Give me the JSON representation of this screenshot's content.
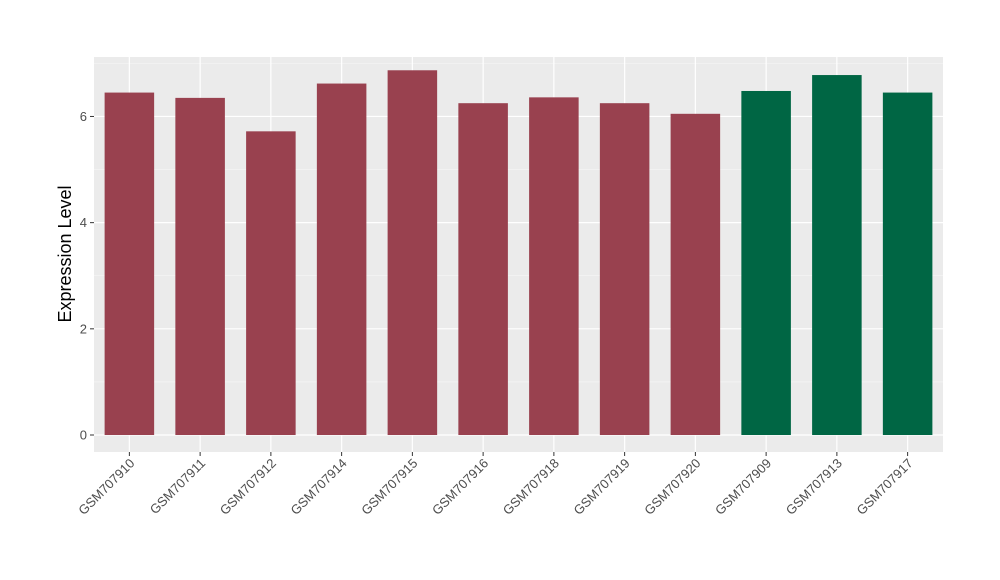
{
  "chart_data": {
    "type": "bar",
    "title": "",
    "xlabel": "",
    "ylabel": "Expression Level",
    "categories": [
      "GSM707910",
      "GSM707911",
      "GSM707912",
      "GSM707914",
      "GSM707915",
      "GSM707916",
      "GSM707918",
      "GSM707919",
      "GSM707920",
      "GSM707909",
      "GSM707913",
      "GSM707917"
    ],
    "values": [
      6.45,
      6.35,
      5.72,
      6.62,
      6.87,
      6.25,
      6.36,
      6.25,
      6.05,
      6.48,
      6.78,
      6.45
    ],
    "bar_colors": [
      "#99414f",
      "#99414f",
      "#99414f",
      "#99414f",
      "#99414f",
      "#99414f",
      "#99414f",
      "#99414f",
      "#99414f",
      "#006644",
      "#006644",
      "#006644"
    ],
    "ylim": [
      -0.32,
      7.12
    ],
    "yticks": [
      0,
      2,
      4,
      6
    ],
    "grid": true,
    "panel_background": "#ebebeb",
    "legend": "none"
  }
}
